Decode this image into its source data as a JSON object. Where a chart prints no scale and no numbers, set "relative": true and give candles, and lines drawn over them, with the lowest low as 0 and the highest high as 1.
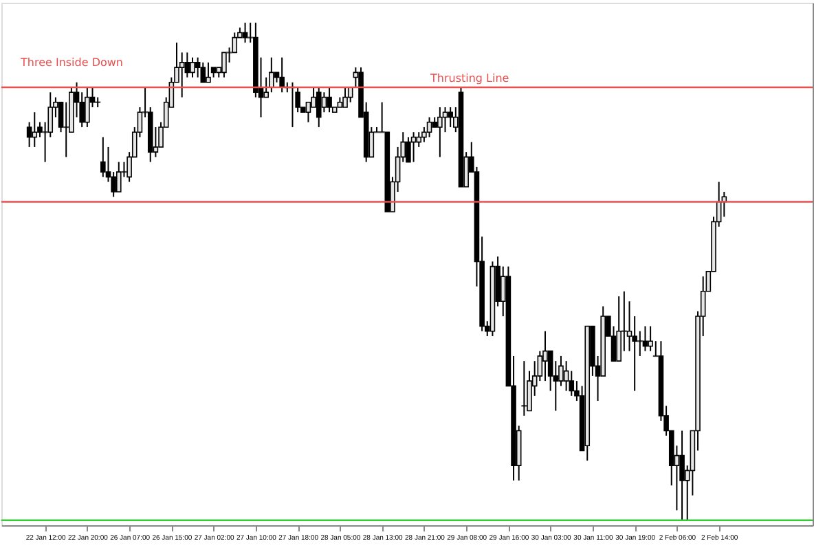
{
  "chart_data": {
    "type": "candlestick",
    "relative": true,
    "categories": [
      null,
      null,
      null,
      "22 Jan 12:00",
      null,
      null,
      null,
      null,
      null,
      null,
      null,
      "22 Jan 20:00",
      null,
      null,
      null,
      null,
      null,
      null,
      null,
      "26 Jan 07:00",
      null,
      null,
      null,
      null,
      null,
      null,
      null,
      "26 Jan 15:00",
      null,
      null,
      null,
      null,
      null,
      null,
      null,
      "27 Jan 02:00",
      null,
      null,
      null,
      null,
      null,
      null,
      null,
      "27 Jan 10:00",
      null,
      null,
      null,
      null,
      null,
      null,
      null,
      "27 Jan 18:00",
      null,
      null,
      null,
      null,
      null,
      null,
      null,
      "28 Jan 05:00",
      null,
      null,
      null,
      null,
      null,
      null,
      null,
      "28 Jan 13:00",
      null,
      null,
      null,
      null,
      null,
      null,
      null,
      "28 Jan 21:00",
      null,
      null,
      null,
      null,
      null,
      null,
      null,
      "29 Jan 08:00",
      null,
      null,
      null,
      null,
      null,
      null,
      null,
      "29 Jan 16:00",
      null,
      null,
      null,
      null,
      null,
      null,
      null,
      "30 Jan 03:00",
      null,
      null,
      null,
      null,
      null,
      null,
      null,
      "30 Jan 11:00",
      null,
      null,
      null,
      null,
      null,
      null,
      null,
      "30 Jan 19:00",
      null,
      null,
      null,
      null,
      null,
      null,
      null,
      "2 Feb 06:00",
      null,
      null,
      null,
      null,
      null,
      null,
      null,
      "2 Feb 14:00",
      null
    ],
    "ohlc": [
      [
        0.79,
        0.8,
        0.75,
        0.77
      ],
      [
        0.77,
        0.82,
        0.75,
        0.78
      ],
      [
        0.79,
        0.8,
        0.77,
        0.78
      ],
      [
        0.78,
        0.8,
        0.72,
        0.78
      ],
      [
        0.78,
        0.86,
        0.77,
        0.83
      ],
      [
        0.83,
        0.85,
        0.81,
        0.84
      ],
      [
        0.84,
        0.84,
        0.78,
        0.79
      ],
      [
        0.79,
        0.84,
        0.73,
        0.79
      ],
      [
        0.78,
        0.87,
        0.78,
        0.86
      ],
      [
        0.86,
        0.88,
        0.81,
        0.84
      ],
      [
        0.84,
        0.86,
        0.79,
        0.8
      ],
      [
        0.8,
        0.87,
        0.79,
        0.85
      ],
      [
        0.85,
        0.87,
        0.83,
        0.84
      ],
      [
        0.84,
        0.85,
        0.83,
        0.84
      ],
      [
        0.72,
        0.77,
        0.69,
        0.7
      ],
      [
        0.7,
        0.75,
        0.68,
        0.69
      ],
      [
        0.69,
        0.7,
        0.65,
        0.66
      ],
      [
        0.66,
        0.72,
        0.66,
        0.7
      ],
      [
        0.7,
        0.72,
        0.69,
        0.7
      ],
      [
        0.69,
        0.74,
        0.68,
        0.73
      ],
      [
        0.73,
        0.79,
        0.73,
        0.78
      ],
      [
        0.78,
        0.83,
        0.77,
        0.82
      ],
      [
        0.82,
        0.87,
        0.81,
        0.82
      ],
      [
        0.82,
        0.83,
        0.72,
        0.74
      ],
      [
        0.74,
        0.79,
        0.73,
        0.75
      ],
      [
        0.75,
        0.8,
        0.75,
        0.79
      ],
      [
        0.79,
        0.85,
        0.79,
        0.84
      ],
      [
        0.83,
        0.89,
        0.83,
        0.88
      ],
      [
        0.88,
        0.96,
        0.88,
        0.91
      ],
      [
        0.91,
        0.94,
        0.85,
        0.92
      ],
      [
        0.92,
        0.94,
        0.89,
        0.9
      ],
      [
        0.9,
        0.93,
        0.89,
        0.92
      ],
      [
        0.92,
        0.93,
        0.89,
        0.91
      ],
      [
        0.91,
        0.92,
        0.88,
        0.88
      ],
      [
        0.88,
        0.92,
        0.88,
        0.89
      ],
      [
        0.91,
        0.91,
        0.89,
        0.9
      ],
      [
        0.9,
        0.91,
        0.89,
        0.91
      ],
      [
        0.9,
        0.94,
        0.89,
        0.94
      ],
      [
        0.94,
        0.95,
        0.92,
        0.94
      ],
      [
        0.94,
        0.98,
        0.94,
        0.97
      ],
      [
        0.97,
        0.99,
        0.97,
        0.98
      ],
      [
        0.98,
        1.0,
        0.96,
        0.97
      ],
      [
        0.97,
        1.0,
        0.96,
        0.97
      ],
      [
        0.97,
        1.0,
        0.85,
        0.86
      ],
      [
        0.87,
        0.93,
        0.81,
        0.85
      ],
      [
        0.85,
        0.89,
        0.85,
        0.86
      ],
      [
        0.87,
        0.93,
        0.86,
        0.9
      ],
      [
        0.9,
        0.9,
        0.88,
        0.89
      ],
      [
        0.89,
        0.93,
        0.86,
        0.87
      ],
      [
        0.87,
        0.88,
        0.86,
        0.87
      ],
      [
        0.87,
        0.88,
        0.79,
        0.87
      ],
      [
        0.86,
        0.87,
        0.82,
        0.83
      ],
      [
        0.83,
        0.83,
        0.82,
        0.82
      ],
      [
        0.82,
        0.84,
        0.8,
        0.84
      ],
      [
        0.83,
        0.87,
        0.83,
        0.85
      ],
      [
        0.86,
        0.87,
        0.79,
        0.81
      ],
      [
        0.83,
        0.86,
        0.82,
        0.85
      ],
      [
        0.85,
        0.87,
        0.82,
        0.83
      ],
      [
        0.82,
        0.83,
        0.82,
        0.83
      ],
      [
        0.83,
        0.85,
        0.83,
        0.84
      ],
      [
        0.83,
        0.87,
        0.83,
        0.85
      ],
      [
        0.85,
        0.87,
        0.84,
        0.87
      ],
      [
        0.89,
        0.91,
        0.87,
        0.9
      ],
      [
        0.9,
        0.91,
        0.81,
        0.81
      ],
      [
        0.82,
        0.84,
        0.72,
        0.73
      ],
      [
        0.73,
        0.79,
        0.73,
        0.78
      ],
      [
        0.78,
        0.79,
        0.78,
        0.78
      ],
      [
        0.78,
        0.84,
        0.78,
        0.78
      ],
      [
        0.78,
        0.78,
        0.62,
        0.62
      ],
      [
        0.62,
        0.69,
        0.62,
        0.68
      ],
      [
        0.68,
        0.75,
        0.66,
        0.73
      ],
      [
        0.73,
        0.78,
        0.72,
        0.76
      ],
      [
        0.76,
        0.77,
        0.72,
        0.72
      ],
      [
        0.76,
        0.78,
        0.72,
        0.77
      ],
      [
        0.76,
        0.78,
        0.75,
        0.77
      ],
      [
        0.77,
        0.79,
        0.76,
        0.78
      ],
      [
        0.78,
        0.81,
        0.77,
        0.8
      ],
      [
        0.8,
        0.81,
        0.79,
        0.79
      ],
      [
        0.79,
        0.83,
        0.73,
        0.81
      ],
      [
        0.81,
        0.83,
        0.78,
        0.82
      ],
      [
        0.82,
        0.83,
        0.79,
        0.81
      ],
      [
        0.79,
        0.83,
        0.78,
        0.81
      ],
      [
        0.86,
        0.87,
        0.67,
        0.67
      ],
      [
        0.67,
        0.74,
        0.67,
        0.73
      ],
      [
        0.73,
        0.76,
        0.7,
        0.7
      ],
      [
        0.7,
        0.71,
        0.47,
        0.52
      ],
      [
        0.52,
        0.57,
        0.38,
        0.39
      ],
      [
        0.39,
        0.4,
        0.37,
        0.38
      ],
      [
        0.38,
        0.52,
        0.37,
        0.51
      ],
      [
        0.51,
        0.53,
        0.43,
        0.44
      ],
      [
        0.44,
        0.51,
        0.41,
        0.49
      ],
      [
        0.49,
        0.51,
        0.27,
        0.27
      ],
      [
        0.27,
        0.33,
        0.08,
        0.11
      ],
      [
        0.11,
        0.19,
        0.08,
        0.18
      ],
      [
        0.23,
        0.32,
        0.21,
        0.23
      ],
      [
        0.22,
        0.3,
        0.22,
        0.28
      ],
      [
        0.27,
        0.32,
        0.25,
        0.29
      ],
      [
        0.29,
        0.34,
        0.28,
        0.33
      ],
      [
        0.32,
        0.38,
        0.28,
        0.34
      ],
      [
        0.34,
        0.34,
        0.26,
        0.29
      ],
      [
        0.29,
        0.32,
        0.22,
        0.28
      ],
      [
        0.28,
        0.33,
        0.27,
        0.31
      ],
      [
        0.28,
        0.32,
        0.26,
        0.3
      ],
      [
        0.28,
        0.3,
        0.25,
        0.26
      ],
      [
        0.26,
        0.28,
        0.24,
        0.25
      ],
      [
        0.25,
        0.27,
        0.14,
        0.14
      ],
      [
        0.15,
        0.39,
        0.12,
        0.39
      ],
      [
        0.39,
        0.39,
        0.29,
        0.31
      ],
      [
        0.31,
        0.33,
        0.24,
        0.29
      ],
      [
        0.29,
        0.43,
        0.29,
        0.41
      ],
      [
        0.41,
        0.41,
        0.37,
        0.37
      ],
      [
        0.37,
        0.39,
        0.32,
        0.32
      ],
      [
        0.32,
        0.45,
        0.32,
        0.38
      ],
      [
        0.38,
        0.46,
        0.34,
        0.38
      ],
      [
        0.37,
        0.44,
        0.34,
        0.38
      ],
      [
        0.37,
        0.41,
        0.26,
        0.36
      ],
      [
        0.36,
        0.38,
        0.33,
        0.36
      ],
      [
        0.36,
        0.39,
        0.34,
        0.35
      ],
      [
        0.35,
        0.39,
        0.34,
        0.36
      ],
      [
        0.33,
        0.36,
        0.33,
        0.33
      ],
      [
        0.33,
        0.36,
        0.2,
        0.21
      ],
      [
        0.21,
        0.23,
        0.17,
        0.18
      ],
      [
        0.18,
        0.18,
        0.07,
        0.11
      ],
      [
        0.11,
        0.15,
        0.02,
        0.13
      ],
      [
        0.13,
        0.18,
        0.0,
        0.08
      ],
      [
        0.08,
        0.11,
        0.0,
        0.1
      ],
      [
        0.1,
        0.18,
        0.05,
        0.18
      ],
      [
        0.18,
        0.42,
        0.14,
        0.41
      ],
      [
        0.41,
        0.49,
        0.37,
        0.46
      ],
      [
        0.46,
        0.5,
        0.46,
        0.5
      ],
      [
        0.5,
        0.61,
        0.5,
        0.6
      ],
      [
        0.6,
        0.68,
        0.59,
        0.64
      ],
      [
        0.64,
        0.66,
        0.61,
        0.65
      ]
    ],
    "ref_lines": [
      {
        "axis": "y",
        "value": 0.64,
        "color": "#e85050"
      },
      {
        "axis": "y",
        "value": 0.87,
        "label": "Thrusting Line",
        "color": "#e85050"
      },
      {
        "axis": "y",
        "value": 0.0,
        "color": "#33cc33"
      }
    ],
    "annotations": [
      "Three Inside Down"
    ],
    "grid": false,
    "legend": false
  }
}
